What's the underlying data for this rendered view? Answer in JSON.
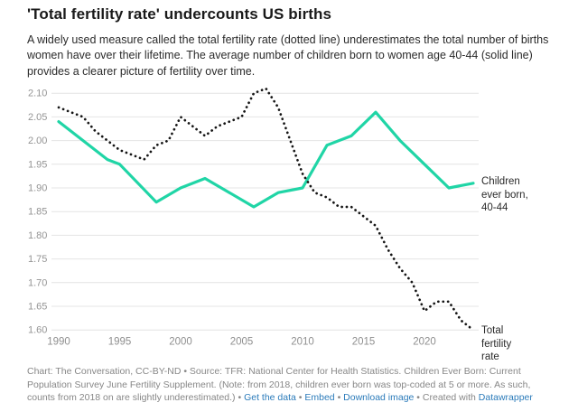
{
  "header": {
    "title": "'Total fertility rate' undercounts US births",
    "description": "A widely used measure called the total fertility rate (dotted line) underestimates the total number of births women have over their lifetime. The average number of children born to women age 40-44 (solid line) provides a clearer picture of fertility over time."
  },
  "colors": {
    "accent_teal": "#20d5a6",
    "line_black": "#151515",
    "grid": "#e4e4e4",
    "y_tick_label": "#959595",
    "x_tick_label": "#8f8f8f",
    "link_blue": "#2b7bba",
    "footer_gray": "#878787"
  },
  "chart_data": {
    "type": "line",
    "title": "'Total fertility rate' undercounts US births",
    "xlabel": "",
    "ylabel": "",
    "grid": true,
    "legend_position": "right-edge-annotations",
    "x_axis": {
      "range": [
        1990,
        2024
      ],
      "tick_labels": [
        "1990",
        "1995",
        "2000",
        "2005",
        "2010",
        "2015",
        "2020"
      ],
      "tick_years": [
        1990,
        1995,
        2000,
        2005,
        2010,
        2015,
        2020
      ]
    },
    "y_axis": {
      "range": [
        1.6,
        2.1
      ],
      "tick_labels": [
        "2.10",
        "2.05",
        "2.00",
        "1.95",
        "1.90",
        "1.85",
        "1.80",
        "1.75",
        "1.70",
        "1.65",
        "1.60"
      ],
      "tick_values": [
        2.1,
        2.05,
        2.0,
        1.95,
        1.9,
        1.85,
        1.8,
        1.75,
        1.7,
        1.65,
        1.6
      ]
    },
    "series": [
      {
        "name": "Total fertility rate",
        "style": "dotted",
        "color": "#151515",
        "x": [
          1990,
          1991,
          1992,
          1993,
          1994,
          1995,
          1996,
          1997,
          1998,
          1999,
          2000,
          2001,
          2002,
          2003,
          2004,
          2005,
          2006,
          2007,
          2008,
          2009,
          2010,
          2011,
          2012,
          2013,
          2014,
          2015,
          2016,
          2017,
          2018,
          2019,
          2020,
          2021,
          2022,
          2023,
          2024
        ],
        "values": [
          2.07,
          2.06,
          2.05,
          2.02,
          2.0,
          1.98,
          1.97,
          1.96,
          1.99,
          2.0,
          2.05,
          2.03,
          2.01,
          2.03,
          2.04,
          2.05,
          2.1,
          2.11,
          2.07,
          2.0,
          1.93,
          1.89,
          1.88,
          1.86,
          1.86,
          1.84,
          1.82,
          1.77,
          1.73,
          1.7,
          1.64,
          1.66,
          1.66,
          1.62,
          1.6
        ]
      },
      {
        "name": "Children ever born, 40-44",
        "style": "solid",
        "color": "#20d5a6",
        "x": [
          1990,
          1992,
          1994,
          1995,
          1998,
          2000,
          2002,
          2004,
          2006,
          2008,
          2010,
          2012,
          2014,
          2016,
          2018,
          2020,
          2022,
          2024
        ],
        "values": [
          2.04,
          2.0,
          1.96,
          1.95,
          1.87,
          1.9,
          1.92,
          1.89,
          1.86,
          1.89,
          1.9,
          1.99,
          2.01,
          2.06,
          2.0,
          1.95,
          1.9,
          1.91
        ]
      }
    ],
    "annotations": [
      {
        "text": "Children ever born, 40-44",
        "series": "Children ever born, 40-44"
      },
      {
        "text": "Total fertility rate",
        "series": "Total fertility rate"
      }
    ]
  },
  "footer": {
    "segments": [
      {
        "type": "text",
        "text": "Chart: The Conversation, CC-BY-ND • Source: TFR: National Center for Health Statistics. Children Ever Born: Current Population Survey June Fertility Supplement. (Note: from 2018, children ever born was top-coded at 5 or more. As such, counts from 2018 on are slightly underestimated.)"
      },
      {
        "type": "sep",
        "text": " • "
      },
      {
        "type": "link",
        "text": "Get the data",
        "name": "get-the-data-link"
      },
      {
        "type": "sep",
        "text": " • "
      },
      {
        "type": "link",
        "text": "Embed",
        "name": "embed-link"
      },
      {
        "type": "sep",
        "text": " • "
      },
      {
        "type": "link",
        "text": "Download image",
        "name": "download-image-link"
      },
      {
        "type": "sep",
        "text": " • Created with "
      },
      {
        "type": "link",
        "text": "Datawrapper",
        "name": "datawrapper-link"
      }
    ]
  }
}
